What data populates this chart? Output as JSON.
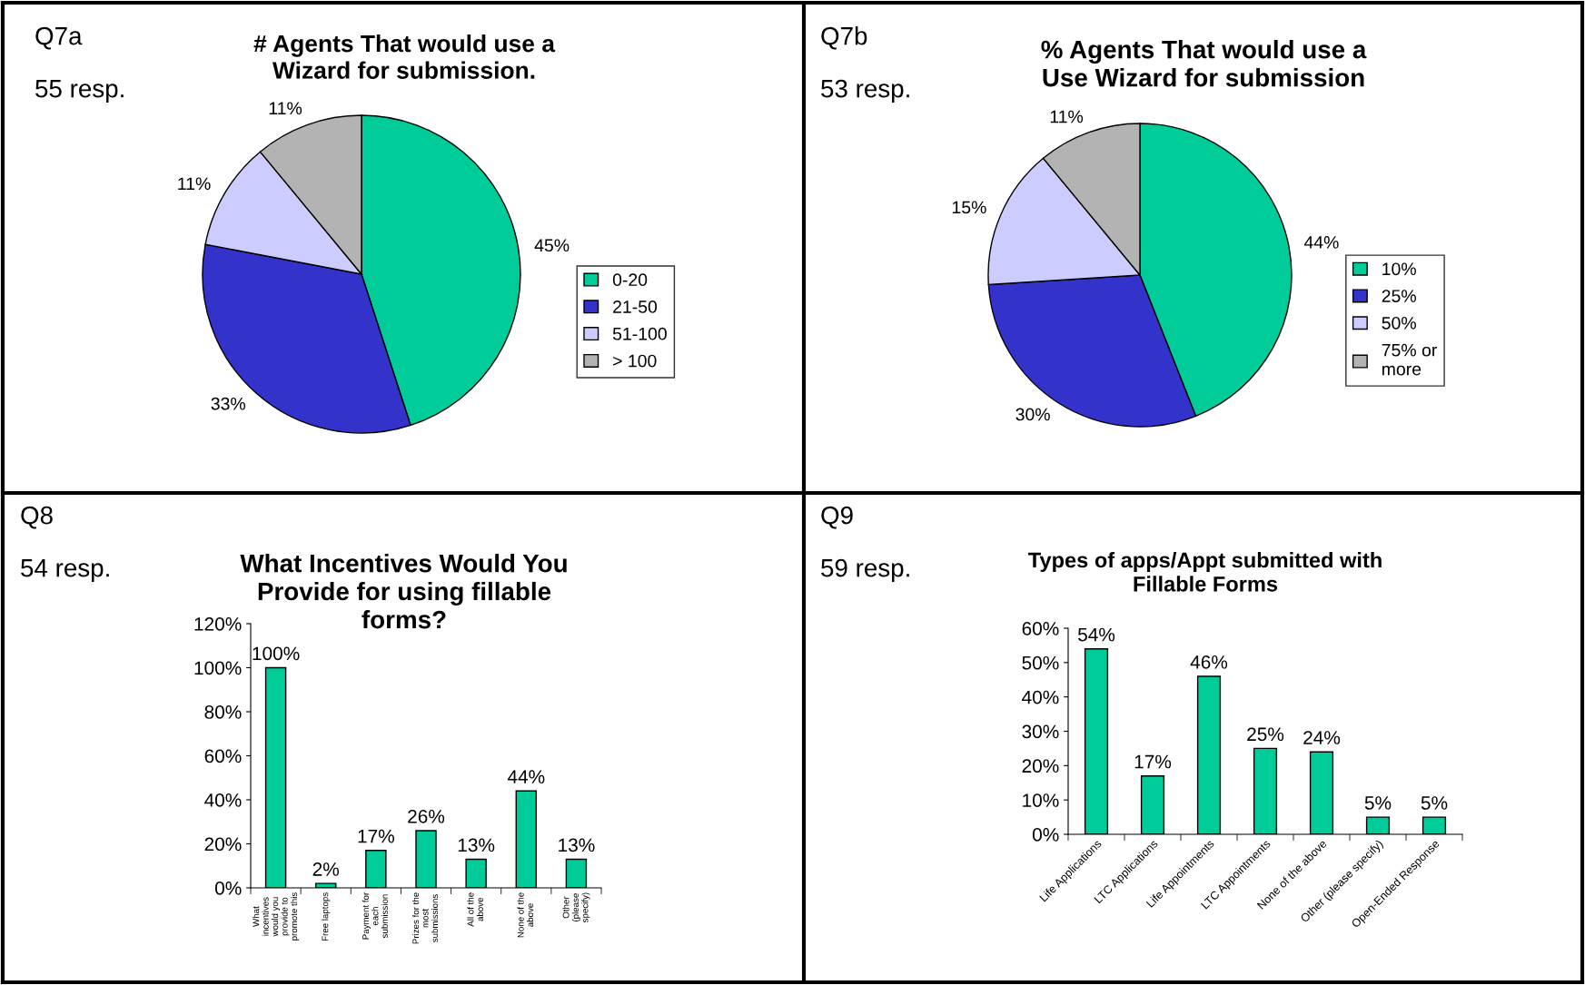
{
  "chart_data": [
    {
      "type": "pie",
      "title": "# Agents That would use a\nWizard for submission.",
      "annotations": [
        "Q7a",
        "55 resp."
      ],
      "categories": [
        "0-20",
        "21-50",
        "51-100",
        "> 100"
      ],
      "values": [
        45,
        33,
        11,
        11
      ],
      "value_labels": [
        "45%",
        "33%",
        "11%",
        "11%"
      ],
      "colors": [
        "#00cc99",
        "#3333cc",
        "#ccccff",
        "#b3b3b3"
      ],
      "legend": "right"
    },
    {
      "type": "pie",
      "title": "% Agents That would use a\nUse Wizard for submission",
      "annotations": [
        "Q7b",
        "53 resp."
      ],
      "categories": [
        "10%",
        "25%",
        "50%",
        "75% or\nmore"
      ],
      "values": [
        44,
        30,
        15,
        11
      ],
      "value_labels": [
        "44%",
        "30%",
        "15%",
        "11%"
      ],
      "colors": [
        "#00cc99",
        "#3333cc",
        "#ccccff",
        "#b3b3b3"
      ],
      "legend": "right"
    },
    {
      "type": "bar",
      "title": "What Incentives Would You\nProvide for using fillable\nforms?",
      "annotations": [
        "Q8",
        "54 resp."
      ],
      "categories": [
        "What\nincentives\nwould you\nprovide to\npromote this",
        "Free laptops",
        "Payment for\neach\nsubmission",
        "Prizes for the\nmost\nsubmissions",
        "All of the\nabove",
        "None of the\nabove",
        "Other\n(please\nspecify)"
      ],
      "values": [
        100,
        2,
        17,
        26,
        13,
        44,
        13
      ],
      "value_labels": [
        "100%",
        "2%",
        "17%",
        "26%",
        "13%",
        "44%",
        "13%"
      ],
      "color": "#00cc99",
      "ylim": [
        0,
        120
      ],
      "yticks": [
        {
          "value": 0,
          "label": "0%"
        },
        {
          "value": 20,
          "label": "20%"
        },
        {
          "value": 40,
          "label": "40%"
        },
        {
          "value": 60,
          "label": "60%"
        },
        {
          "value": 80,
          "label": "80%"
        },
        {
          "value": 100,
          "label": "100%"
        },
        {
          "value": 120,
          "label": "120%"
        }
      ]
    },
    {
      "type": "bar",
      "title": "Types of apps/Appt submitted with\nFillable Forms",
      "annotations": [
        "Q9",
        "59 resp."
      ],
      "categories": [
        "Life Applications",
        "LTC Applications",
        "Life Appointments",
        "LTC Appointments",
        "None of the above",
        "Other (please specify)",
        "Open-Ended Response"
      ],
      "values": [
        54,
        17,
        46,
        25,
        24,
        5,
        5
      ],
      "value_labels": [
        "54%",
        "17%",
        "46%",
        "25%",
        "24%",
        "5%",
        "5%"
      ],
      "color": "#00cc99",
      "ylim": [
        0,
        60
      ],
      "yticks": [
        {
          "value": 0,
          "label": "0%"
        },
        {
          "value": 10,
          "label": "10%"
        },
        {
          "value": 20,
          "label": "20%"
        },
        {
          "value": 30,
          "label": "30%"
        },
        {
          "value": 40,
          "label": "40%"
        },
        {
          "value": 50,
          "label": "50%"
        },
        {
          "value": 60,
          "label": "60%"
        }
      ]
    }
  ]
}
